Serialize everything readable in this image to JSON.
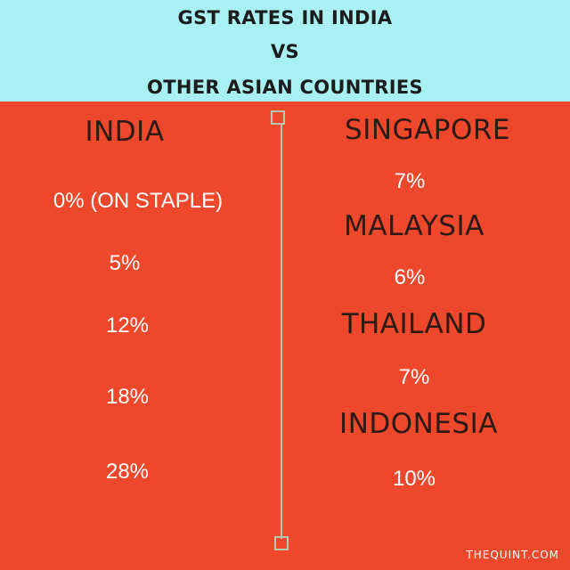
{
  "title": {
    "line1": "GST RATES IN INDIA",
    "line2": "VS",
    "line3": "OTHER ASIAN COUNTRIES"
  },
  "india": {
    "heading": "INDIA",
    "rates": [
      "0% (ON STAPLE)",
      "5%",
      "12%",
      "18%",
      "28%"
    ]
  },
  "countries": [
    {
      "name": "SINGAPORE",
      "rate": "7%"
    },
    {
      "name": "MALAYSIA",
      "rate": "6%"
    },
    {
      "name": "THAILAND",
      "rate": "7%"
    },
    {
      "name": "INDONESIA",
      "rate": "10%"
    }
  ],
  "footer": "THEQUINT.COM",
  "colors": {
    "header_bg": "#a9f0f3",
    "main_bg": "#ee482c",
    "heading_text": "#2b1a15",
    "rate_text": "#ffffff"
  }
}
